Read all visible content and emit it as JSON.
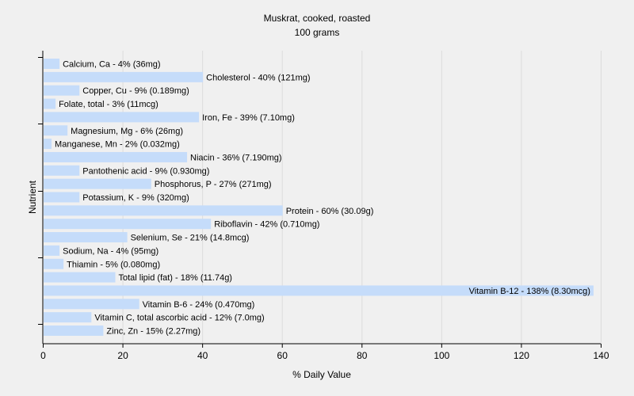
{
  "chart_data": {
    "type": "bar",
    "orientation": "horizontal",
    "title": "Muskrat, cooked, roasted",
    "subtitle": "100 grams",
    "xlabel": "% Daily Value",
    "ylabel": "Nutrient",
    "xlim": [
      0,
      140
    ],
    "xticks": [
      0,
      20,
      40,
      60,
      80,
      100,
      120,
      140
    ],
    "grid": true,
    "bar_color": "#c5dcfa",
    "categories": [
      "Calcium, Ca",
      "Cholesterol",
      "Copper, Cu",
      "Folate, total",
      "Iron, Fe",
      "Magnesium, Mg",
      "Manganese, Mn",
      "Niacin",
      "Pantothenic acid",
      "Phosphorus, P",
      "Potassium, K",
      "Protein",
      "Riboflavin",
      "Selenium, Se",
      "Sodium, Na",
      "Thiamin",
      "Total lipid (fat)",
      "Vitamin B-12",
      "Vitamin B-6",
      "Vitamin C, total ascorbic acid",
      "Zinc, Zn"
    ],
    "values": [
      4,
      40,
      9,
      3,
      39,
      6,
      2,
      36,
      9,
      27,
      9,
      60,
      42,
      21,
      4,
      5,
      18,
      138,
      24,
      12,
      15
    ],
    "labels": [
      "Calcium, Ca - 4% (36mg)",
      "Cholesterol - 40% (121mg)",
      "Copper, Cu - 9% (0.189mg)",
      "Folate, total - 3% (11mcg)",
      "Iron, Fe - 39% (7.10mg)",
      "Magnesium, Mg - 6% (26mg)",
      "Manganese, Mn - 2% (0.032mg)",
      "Niacin - 36% (7.190mg)",
      "Pantothenic acid - 9% (0.930mg)",
      "Phosphorus, P - 27% (271mg)",
      "Potassium, K - 9% (320mg)",
      "Protein - 60% (30.09g)",
      "Riboflavin - 42% (0.710mg)",
      "Selenium, Se - 21% (14.8mcg)",
      "Sodium, Na - 4% (95mg)",
      "Thiamin - 5% (0.080mg)",
      "Total lipid (fat) - 18% (11.74g)",
      "Vitamin B-12 - 138% (8.30mcg)",
      "Vitamin B-6 - 24% (0.470mg)",
      "Vitamin C, total ascorbic acid - 12% (7.0mg)",
      "Zinc, Zn - 15% (2.27mg)"
    ]
  }
}
